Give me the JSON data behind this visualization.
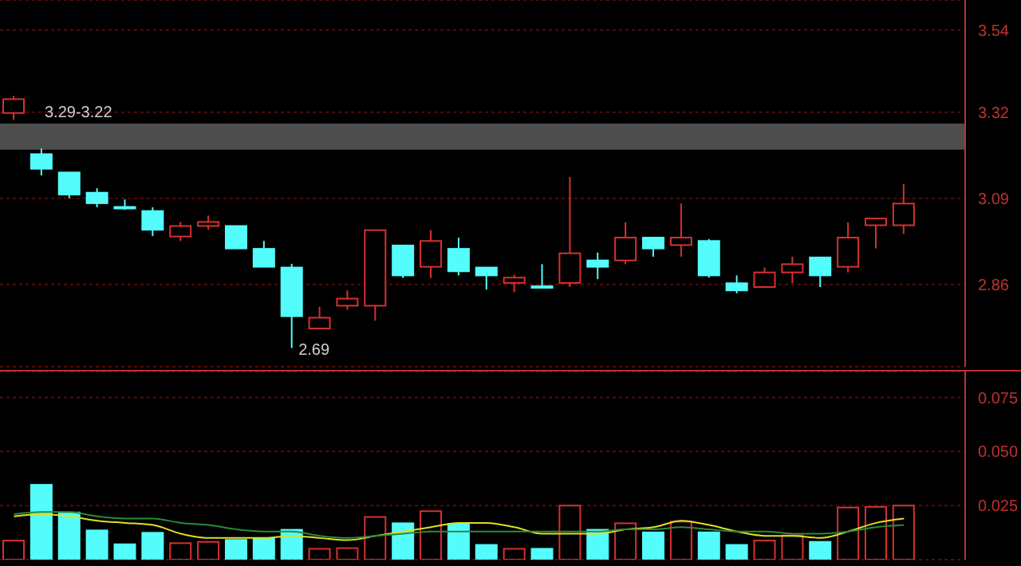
{
  "chart_data": [
    {
      "type": "candlestick",
      "categories": [
        null,
        null,
        null,
        null,
        null,
        null,
        null,
        null,
        null,
        null,
        null,
        null,
        null,
        null,
        null,
        null,
        null,
        null,
        null,
        null,
        null,
        null,
        null,
        null,
        null,
        null,
        null,
        null,
        null,
        null,
        null,
        null,
        null
      ],
      "ohlc": [
        [
          3.318,
          3.364,
          3.3,
          3.355
        ],
        [
          3.208,
          3.223,
          3.151,
          3.169
        ],
        [
          3.159,
          3.159,
          3.09,
          3.1
        ],
        [
          3.105,
          3.117,
          3.066,
          3.077
        ],
        [
          3.067,
          3.087,
          3.059,
          3.064
        ],
        [
          3.056,
          3.066,
          2.989,
          3.006
        ],
        [
          2.988,
          3.027,
          2.976,
          3.016
        ],
        [
          3.016,
          3.044,
          3.006,
          3.027
        ],
        [
          3.016,
          3.016,
          2.956,
          2.956
        ],
        [
          2.955,
          2.976,
          2.907,
          2.907
        ],
        [
          2.905,
          2.915,
          2.69,
          2.775
        ],
        [
          2.742,
          2.8,
          2.742,
          2.771
        ],
        [
          2.803,
          2.844,
          2.792,
          2.822
        ],
        [
          2.803,
          3.005,
          2.763,
          3.005
        ],
        [
          2.964,
          2.964,
          2.877,
          2.884
        ],
        [
          2.907,
          3.005,
          2.877,
          2.976
        ],
        [
          2.955,
          2.985,
          2.884,
          2.895
        ],
        [
          2.905,
          2.905,
          2.846,
          2.884
        ],
        [
          2.864,
          2.886,
          2.839,
          2.878
        ],
        [
          2.855,
          2.914,
          2.853,
          2.853
        ],
        [
          2.864,
          3.147,
          2.853,
          2.943
        ],
        [
          2.924,
          2.945,
          2.874,
          2.907
        ],
        [
          2.924,
          3.026,
          2.914,
          2.985
        ],
        [
          2.985,
          2.985,
          2.934,
          2.956
        ],
        [
          2.965,
          3.076,
          2.934,
          2.985
        ],
        [
          2.976,
          2.981,
          2.878,
          2.884
        ],
        [
          2.863,
          2.884,
          2.836,
          2.844
        ],
        [
          2.853,
          2.905,
          2.853,
          2.892
        ],
        [
          2.892,
          2.934,
          2.863,
          2.914
        ],
        [
          2.932,
          2.932,
          2.853,
          2.884
        ],
        [
          2.907,
          3.026,
          2.892,
          2.985
        ],
        [
          3.018,
          3.036,
          2.956,
          3.036
        ],
        [
          3.018,
          3.128,
          2.995,
          3.076
        ]
      ],
      "colors": [
        "#d83030",
        "#54fcfc",
        "#54fcfc",
        "#54fcfc",
        "#54fcfc",
        "#54fcfc",
        "#d83030",
        "#d83030",
        "#54fcfc",
        "#54fcfc",
        "#54fcfc",
        "#d83030",
        "#d83030",
        "#d83030",
        "#54fcfc",
        "#d83030",
        "#54fcfc",
        "#54fcfc",
        "#d83030",
        "#54fcfc",
        "#d83030",
        "#54fcfc",
        "#d83030",
        "#54fcfc",
        "#d83030",
        "#54fcfc",
        "#54fcfc",
        "#d83030",
        "#d83030",
        "#54fcfc",
        "#d83030",
        "#d83030",
        "#d83030"
      ],
      "ylim": [
        2.64,
        3.62
      ],
      "yticks": [
        2.86,
        3.09,
        3.32,
        3.54
      ],
      "grid": "y",
      "tick_labels": "y",
      "bands": [
        {
          "axis": "y",
          "from": 3.22,
          "to": 3.29,
          "label": "3.29-3.22",
          "color": "#4d4d4d"
        }
      ],
      "annotations": [
        "2.69"
      ]
    },
    {
      "type": "bar",
      "categories": [
        null,
        null,
        null,
        null,
        null,
        null,
        null,
        null,
        null,
        null,
        null,
        null,
        null,
        null,
        null,
        null,
        null,
        null,
        null,
        null,
        null,
        null,
        null,
        null,
        null,
        null,
        null,
        null,
        null,
        null,
        null,
        null,
        null
      ],
      "series": [
        {
          "type": "bar",
          "values": [
            0.0088,
            0.0346,
            0.0218,
            0.0135,
            0.0071,
            0.0124,
            0.0076,
            0.0082,
            0.0091,
            0.0097,
            0.0138,
            0.005,
            0.0053,
            0.0197,
            0.0168,
            0.0224,
            0.0165,
            0.0068,
            0.005,
            0.005,
            0.025,
            0.0138,
            0.0168,
            0.0126,
            0.0176,
            0.0126,
            0.0068,
            0.0088,
            0.0112,
            0.0082,
            0.0241,
            0.0244,
            0.025
          ],
          "colors": [
            "#d83030",
            "#54fcfc",
            "#54fcfc",
            "#54fcfc",
            "#54fcfc",
            "#54fcfc",
            "#d83030",
            "#d83030",
            "#54fcfc",
            "#54fcfc",
            "#54fcfc",
            "#d83030",
            "#d83030",
            "#d83030",
            "#54fcfc",
            "#d83030",
            "#54fcfc",
            "#54fcfc",
            "#d83030",
            "#54fcfc",
            "#d83030",
            "#54fcfc",
            "#d83030",
            "#54fcfc",
            "#d83030",
            "#54fcfc",
            "#54fcfc",
            "#d83030",
            "#d83030",
            "#54fcfc",
            "#d83030",
            "#d83030",
            "#d83030"
          ]
        },
        {
          "type": "line",
          "color": "#e0e020",
          "values": [
            0.02,
            0.021,
            0.02,
            0.018,
            0.017,
            0.016,
            0.012,
            0.01,
            0.01,
            0.01,
            0.011,
            0.01,
            0.009,
            0.011,
            0.013,
            0.015,
            0.017,
            0.017,
            0.015,
            0.012,
            0.012,
            0.012,
            0.014,
            0.015,
            0.018,
            0.016,
            0.013,
            0.011,
            0.011,
            0.01,
            0.013,
            0.017,
            0.019
          ]
        },
        {
          "type": "line",
          "color": "#2a8a3a",
          "values": [
            0.021,
            0.022,
            0.022,
            0.02,
            0.019,
            0.019,
            0.017,
            0.016,
            0.014,
            0.013,
            0.013,
            0.011,
            0.01,
            0.011,
            0.012,
            0.013,
            0.013,
            0.013,
            0.013,
            0.013,
            0.013,
            0.013,
            0.014,
            0.014,
            0.015,
            0.014,
            0.013,
            0.013,
            0.012,
            0.012,
            0.013,
            0.015,
            0.016
          ]
        }
      ],
      "ylim": [
        0,
        0.087
      ],
      "yticks": [
        0.025,
        {
          "value": 0.05,
          "label": "0.050"
        },
        0.075
      ],
      "grid": "y",
      "tick_labels": "y"
    }
  ]
}
